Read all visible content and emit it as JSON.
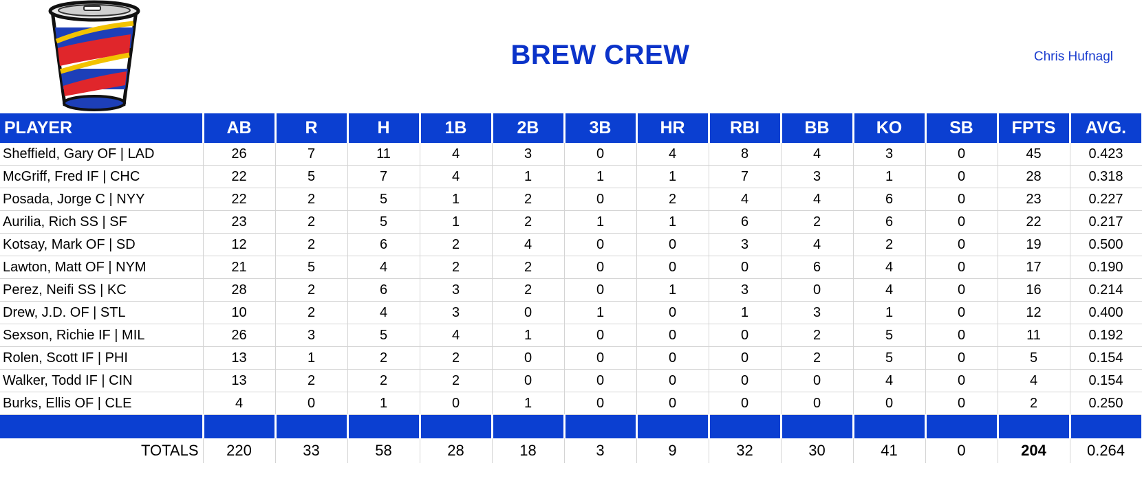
{
  "team": {
    "title": "BREW CREW",
    "owner": "Chris Hufnagl",
    "logo_icon": "cup-logo-icon"
  },
  "columns": [
    "PLAYER",
    "AB",
    "R",
    "H",
    "1B",
    "2B",
    "3B",
    "HR",
    "RBI",
    "BB",
    "KO",
    "SB",
    "FPTS",
    "AVG."
  ],
  "rows": [
    [
      "Sheffield, Gary OF | LAD",
      "26",
      "7",
      "11",
      "4",
      "3",
      "0",
      "4",
      "8",
      "4",
      "3",
      "0",
      "45",
      "0.423"
    ],
    [
      "McGriff, Fred IF | CHC",
      "22",
      "5",
      "7",
      "4",
      "1",
      "1",
      "1",
      "7",
      "3",
      "1",
      "0",
      "28",
      "0.318"
    ],
    [
      "Posada, Jorge C | NYY",
      "22",
      "2",
      "5",
      "1",
      "2",
      "0",
      "2",
      "4",
      "4",
      "6",
      "0",
      "23",
      "0.227"
    ],
    [
      "Aurilia, Rich SS | SF",
      "23",
      "2",
      "5",
      "1",
      "2",
      "1",
      "1",
      "6",
      "2",
      "6",
      "0",
      "22",
      "0.217"
    ],
    [
      "Kotsay, Mark OF | SD",
      "12",
      "2",
      "6",
      "2",
      "4",
      "0",
      "0",
      "3",
      "4",
      "2",
      "0",
      "19",
      "0.500"
    ],
    [
      "Lawton, Matt OF | NYM",
      "21",
      "5",
      "4",
      "2",
      "2",
      "0",
      "0",
      "0",
      "6",
      "4",
      "0",
      "17",
      "0.190"
    ],
    [
      "Perez, Neifi SS | KC",
      "28",
      "2",
      "6",
      "3",
      "2",
      "0",
      "1",
      "3",
      "0",
      "4",
      "0",
      "16",
      "0.214"
    ],
    [
      "Drew, J.D. OF | STL",
      "10",
      "2",
      "4",
      "3",
      "0",
      "1",
      "0",
      "1",
      "3",
      "1",
      "0",
      "12",
      "0.400"
    ],
    [
      "Sexson, Richie IF | MIL",
      "26",
      "3",
      "5",
      "4",
      "1",
      "0",
      "0",
      "0",
      "2",
      "5",
      "0",
      "11",
      "0.192"
    ],
    [
      "Rolen, Scott IF | PHI",
      "13",
      "1",
      "2",
      "2",
      "0",
      "0",
      "0",
      "0",
      "2",
      "5",
      "0",
      "5",
      "0.154"
    ],
    [
      "Walker, Todd IF | CIN",
      "13",
      "2",
      "2",
      "2",
      "0",
      "0",
      "0",
      "0",
      "0",
      "4",
      "0",
      "4",
      "0.154"
    ],
    [
      "Burks, Ellis OF | CLE",
      "4",
      "0",
      "1",
      "0",
      "1",
      "0",
      "0",
      "0",
      "0",
      "0",
      "0",
      "2",
      "0.250"
    ]
  ],
  "totals": {
    "label": "TOTALS",
    "values": [
      "220",
      "33",
      "58",
      "28",
      "18",
      "3",
      "9",
      "32",
      "30",
      "41",
      "0",
      "204",
      "0.264"
    ]
  },
  "colors": {
    "header_blue": "#0b3fd1",
    "title_blue": "#0b33c9"
  }
}
